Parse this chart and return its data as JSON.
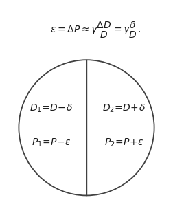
{
  "formula": "$\\varepsilon = \\Delta P \\approx \\gamma\\dfrac{\\Delta D}{D} = \\gamma\\dfrac{\\delta}{D}.$",
  "formula_fontsize": 10,
  "circle_color": "#404040",
  "circle_linewidth": 1.3,
  "divider_linewidth": 1.0,
  "background_color": "#ffffff",
  "left_top_label": "$D_1\\!=\\!D\\!-\\!\\delta$",
  "left_bottom_label": "$P_1\\!=\\!P\\!-\\!\\varepsilon$",
  "right_top_label": "$D_2\\!=\\!D\\!+\\!\\delta$",
  "right_bottom_label": "$P_2\\!=\\!P\\!+\\!\\varepsilon$",
  "label_fontsize": 10,
  "label_color": "#1a1a1a"
}
